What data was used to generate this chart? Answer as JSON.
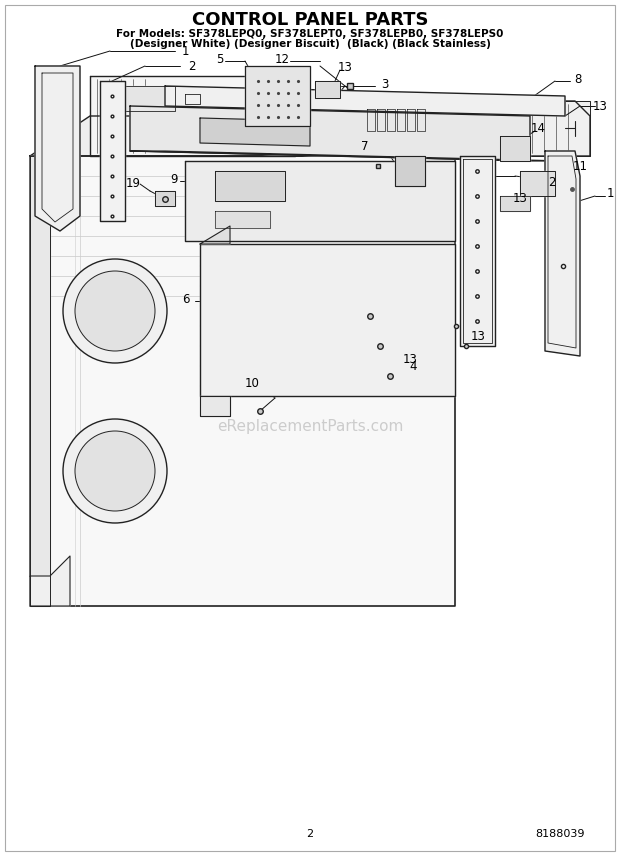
{
  "title": "CONTROL PANEL PARTS",
  "subtitle1": "For Models: SF378LEPQ0, SF378LEPT0, SF378LEPB0, SF378LEPS0",
  "subtitle2": "(Designer White) (Designer Biscuit)  (Black) (Black Stainless)",
  "page_num": "2",
  "doc_num": "8188039",
  "watermark": "eReplacementParts.com",
  "bg_color": "#ffffff",
  "lc": "#222222",
  "fig_w": 6.2,
  "fig_h": 8.56,
  "dpi": 100
}
